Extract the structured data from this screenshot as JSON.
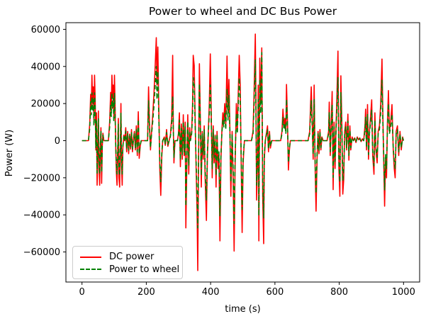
{
  "figure": {
    "title": "Power to wheel and DC Bus Power",
    "xlabel": "time (s)",
    "ylabel": "Power (W)",
    "background_color": "#ffffff",
    "frame_color": "#000000"
  },
  "legend": {
    "items": [
      {
        "label": "DC power",
        "color": "#ff0000",
        "style": "solid"
      },
      {
        "label": "Power to wheel",
        "color": "#008000",
        "style": "dashed"
      }
    ]
  },
  "chart_data": {
    "type": "line",
    "title": "Power to wheel and DC Bus Power",
    "xlabel": "time (s)",
    "ylabel": "Power (W)",
    "xlim": [
      -50,
      1050
    ],
    "ylim": [
      -76200,
      63600
    ],
    "xticks": [
      0,
      200,
      400,
      600,
      800,
      1000
    ],
    "yticks": [
      60000,
      40000,
      20000,
      0,
      -20000,
      -40000,
      -60000
    ],
    "ytick_labels": [
      "60000",
      "40000",
      "20000",
      "0",
      "−20000",
      "−40000",
      "−60000"
    ],
    "grid": false,
    "legend_position": "lower left",
    "series": [
      {
        "name": "DC power",
        "color": "#ff0000",
        "style": "solid",
        "linewidth": 1.6
      },
      {
        "name": "Power to wheel",
        "color": "#008000",
        "style": "dashed",
        "linewidth": 1.6
      }
    ],
    "points_format": [
      "time_s",
      "dc_power_W",
      "wheel_power_W"
    ],
    "points": [
      [
        0,
        0,
        0
      ],
      [
        10,
        0,
        0
      ],
      [
        20,
        0,
        0
      ],
      [
        24,
        9000,
        6700
      ],
      [
        27,
        25000,
        21000
      ],
      [
        29,
        17000,
        14000
      ],
      [
        31,
        35300,
        25800
      ],
      [
        33,
        20000,
        16000
      ],
      [
        35,
        29000,
        23000
      ],
      [
        37,
        11000,
        8100
      ],
      [
        39,
        35300,
        25800
      ],
      [
        41,
        22000,
        17000
      ],
      [
        43,
        -5000,
        -3800
      ],
      [
        45,
        15000,
        11100
      ],
      [
        47,
        -24000,
        -17500
      ],
      [
        49,
        -9000,
        -6800
      ],
      [
        51,
        16000,
        11800
      ],
      [
        53,
        -15000,
        -11200
      ],
      [
        55,
        -24000,
        -18000
      ],
      [
        57,
        -4000,
        -3000
      ],
      [
        59,
        7000,
        5200
      ],
      [
        61,
        -23000,
        -17200
      ],
      [
        63,
        -3000,
        -2200
      ],
      [
        65,
        4000,
        3000
      ],
      [
        68,
        0,
        0
      ],
      [
        75,
        0,
        0
      ],
      [
        82,
        0,
        0
      ],
      [
        86,
        10000,
        7400
      ],
      [
        89,
        26000,
        19800
      ],
      [
        91,
        17000,
        13000
      ],
      [
        93,
        35300,
        25800
      ],
      [
        95,
        23000,
        17500
      ],
      [
        97,
        30000,
        22800
      ],
      [
        99,
        13000,
        9900
      ],
      [
        101,
        35300,
        25800
      ],
      [
        103,
        18000,
        13700
      ],
      [
        105,
        -4000,
        -3000
      ],
      [
        107,
        -17000,
        -12800
      ],
      [
        109,
        -24000,
        -18000
      ],
      [
        111,
        -8000,
        -6000
      ],
      [
        113,
        12000,
        8900
      ],
      [
        115,
        -20000,
        -15000
      ],
      [
        117,
        -25000,
        -18800
      ],
      [
        119,
        -5000,
        -3800
      ],
      [
        121,
        20000,
        14800
      ],
      [
        123,
        -14000,
        -10500
      ],
      [
        125,
        -24000,
        -18000
      ],
      [
        127,
        -4000,
        -3000
      ],
      [
        130,
        3000,
        2200
      ],
      [
        133,
        0,
        0
      ],
      [
        136,
        7000,
        5200
      ],
      [
        139,
        -6000,
        -4500
      ],
      [
        142,
        5000,
        3700
      ],
      [
        145,
        -7000,
        -5200
      ],
      [
        148,
        3500,
        2600
      ],
      [
        151,
        -4500,
        -3400
      ],
      [
        154,
        6000,
        4400
      ],
      [
        157,
        -6000,
        -4500
      ],
      [
        160,
        1000,
        700
      ],
      [
        163,
        5000,
        3700
      ],
      [
        166,
        -5000,
        -3800
      ],
      [
        169,
        8000,
        5900
      ],
      [
        172,
        -8000,
        -6000
      ],
      [
        175,
        15600,
        11500
      ],
      [
        178,
        -9500,
        -7100
      ],
      [
        181,
        -3000,
        -2200
      ],
      [
        184,
        0,
        0
      ],
      [
        190,
        0,
        0
      ],
      [
        198,
        0,
        0
      ],
      [
        204,
        0,
        0
      ],
      [
        207,
        29000,
        21500
      ],
      [
        210,
        9000,
        6700
      ],
      [
        213,
        -5000,
        -3800
      ],
      [
        216,
        4000,
        3000
      ],
      [
        220,
        14000,
        10400
      ],
      [
        224,
        26000,
        19200
      ],
      [
        228,
        42000,
        31100
      ],
      [
        231,
        55500,
        40000
      ],
      [
        233,
        30000,
        22200
      ],
      [
        236,
        50500,
        37400
      ],
      [
        239,
        16000,
        11800
      ],
      [
        242,
        -16000,
        -12000
      ],
      [
        245,
        -29500,
        -22100
      ],
      [
        248,
        -9000,
        -6800
      ],
      [
        251,
        0,
        0
      ],
      [
        256,
        2000,
        1500
      ],
      [
        259,
        -2500,
        -1900
      ],
      [
        263,
        6000,
        4400
      ],
      [
        267,
        -3000,
        -2200
      ],
      [
        271,
        0,
        0
      ],
      [
        275,
        3000,
        2200
      ],
      [
        279,
        12000,
        8900
      ],
      [
        282,
        46000,
        24000
      ],
      [
        284,
        8000,
        5900
      ],
      [
        286,
        -12000,
        -9000
      ],
      [
        289,
        0,
        0
      ],
      [
        293,
        0,
        0
      ],
      [
        297,
        0,
        0
      ],
      [
        300,
        4000,
        3000
      ],
      [
        303,
        15000,
        11100
      ],
      [
        306,
        -14000,
        -10500
      ],
      [
        309,
        9000,
        6700
      ],
      [
        312,
        -10000,
        -7500
      ],
      [
        315,
        14000,
        10400
      ],
      [
        318,
        -8000,
        -6000
      ],
      [
        321,
        10000,
        7400
      ],
      [
        323,
        -47000,
        -35300
      ],
      [
        326,
        -12000,
        -9000
      ],
      [
        329,
        14000,
        10400
      ],
      [
        332,
        -18000,
        -13500
      ],
      [
        335,
        7000,
        5200
      ],
      [
        337,
        0,
        0
      ],
      [
        341,
        5000,
        3700
      ],
      [
        344,
        20000,
        14800
      ],
      [
        346,
        46000,
        34000
      ],
      [
        349,
        40500,
        30000
      ],
      [
        352,
        10000,
        7400
      ],
      [
        355,
        -15000,
        -11200
      ],
      [
        358,
        -40000,
        -30000
      ],
      [
        360,
        -70000,
        -47000
      ],
      [
        362,
        -20000,
        -15000
      ],
      [
        365,
        41500,
        30700
      ],
      [
        368,
        12000,
        8900
      ],
      [
        371,
        -25000,
        -18800
      ],
      [
        374,
        5000,
        3700
      ],
      [
        377,
        -10000,
        -7500
      ],
      [
        380,
        8000,
        5900
      ],
      [
        383,
        -20000,
        -15000
      ],
      [
        387,
        -43000,
        -32200
      ],
      [
        390,
        -8000,
        -6000
      ],
      [
        393,
        6000,
        4400
      ],
      [
        396,
        20000,
        14800
      ],
      [
        399,
        46800,
        30000
      ],
      [
        402,
        15000,
        11100
      ],
      [
        405,
        -20000,
        -15000
      ],
      [
        408,
        8000,
        5900
      ],
      [
        411,
        -12000,
        -9000
      ],
      [
        414,
        3000,
        2200
      ],
      [
        417,
        -25000,
        -18800
      ],
      [
        420,
        5000,
        3700
      ],
      [
        423,
        -15000,
        -11200
      ],
      [
        426,
        -8000,
        -6000
      ],
      [
        429,
        -54000,
        -40500
      ],
      [
        432,
        -10000,
        -7500
      ],
      [
        435,
        5000,
        3700
      ],
      [
        438,
        15000,
        11100
      ],
      [
        441,
        10000,
        7400
      ],
      [
        444,
        20000,
        14800
      ],
      [
        447,
        8000,
        5900
      ],
      [
        451,
        45600,
        28000
      ],
      [
        454,
        15000,
        11100
      ],
      [
        457,
        33000,
        24400
      ],
      [
        460,
        5000,
        3700
      ],
      [
        463,
        -30000,
        -22500
      ],
      [
        467,
        5000,
        3700
      ],
      [
        470,
        -20000,
        -15000
      ],
      [
        473,
        -59500,
        -44600
      ],
      [
        476,
        -15000,
        -11200
      ],
      [
        480,
        20000,
        14800
      ],
      [
        483,
        5000,
        3700
      ],
      [
        486,
        25000,
        18500
      ],
      [
        489,
        46000,
        34000
      ],
      [
        492,
        30000,
        22200
      ],
      [
        495,
        -10000,
        -7500
      ],
      [
        498,
        -49500,
        -37100
      ],
      [
        501,
        -12000,
        -9000
      ],
      [
        505,
        0,
        0
      ],
      [
        515,
        0,
        0
      ],
      [
        527,
        0,
        0
      ],
      [
        532,
        5000,
        3700
      ],
      [
        535,
        25000,
        18500
      ],
      [
        539,
        57500,
        43500
      ],
      [
        541,
        20000,
        14800
      ],
      [
        543,
        -32000,
        -24000
      ],
      [
        546,
        -10000,
        -7500
      ],
      [
        548,
        30000,
        22200
      ],
      [
        550,
        -54000,
        -40500
      ],
      [
        553,
        44500,
        33000
      ],
      [
        556,
        20000,
        14800
      ],
      [
        559,
        50000,
        47500
      ],
      [
        562,
        -30000,
        -22500
      ],
      [
        565,
        -55500,
        -41600
      ],
      [
        567,
        -10000,
        -7500
      ],
      [
        570,
        0,
        0
      ],
      [
        577,
        8000,
        5900
      ],
      [
        580,
        -6000,
        -4500
      ],
      [
        583,
        5000,
        3700
      ],
      [
        586,
        -4000,
        -3000
      ],
      [
        590,
        0,
        0
      ],
      [
        598,
        0,
        0
      ],
      [
        608,
        0,
        0
      ],
      [
        618,
        0,
        0
      ],
      [
        622,
        5000,
        3700
      ],
      [
        625,
        17000,
        12600
      ],
      [
        628,
        8000,
        5900
      ],
      [
        631,
        12000,
        8900
      ],
      [
        634,
        5000,
        3700
      ],
      [
        636,
        30300,
        22400
      ],
      [
        639,
        10000,
        7400
      ],
      [
        642,
        -15800,
        -11800
      ],
      [
        645,
        -5000,
        -3800
      ],
      [
        648,
        0,
        0
      ],
      [
        655,
        0,
        0
      ],
      [
        665,
        0,
        0
      ],
      [
        675,
        0,
        0
      ],
      [
        685,
        0,
        0
      ],
      [
        695,
        0,
        0
      ],
      [
        703,
        0,
        0
      ],
      [
        708,
        5000,
        3700
      ],
      [
        711,
        20000,
        14800
      ],
      [
        713,
        29000,
        21500
      ],
      [
        716,
        10000,
        7400
      ],
      [
        719,
        -10000,
        -7500
      ],
      [
        722,
        30000,
        22200
      ],
      [
        725,
        -15000,
        -11200
      ],
      [
        728,
        -38000,
        -28500
      ],
      [
        731,
        -10000,
        -7500
      ],
      [
        734,
        5000,
        3700
      ],
      [
        737,
        -7000,
        -5200
      ],
      [
        740,
        6000,
        4400
      ],
      [
        743,
        -5000,
        -3800
      ],
      [
        746,
        2000,
        1500
      ],
      [
        750,
        0,
        0
      ],
      [
        756,
        0,
        0
      ],
      [
        762,
        0,
        0
      ],
      [
        767,
        5000,
        3700
      ],
      [
        769,
        20800,
        15400
      ],
      [
        772,
        -8000,
        -6000
      ],
      [
        775,
        10000,
        7400
      ],
      [
        778,
        26500,
        19600
      ],
      [
        781,
        -26400,
        -19800
      ],
      [
        784,
        10000,
        7400
      ],
      [
        787,
        -15000,
        -11200
      ],
      [
        790,
        8000,
        5900
      ],
      [
        793,
        25000,
        18500
      ],
      [
        796,
        48300,
        34000
      ],
      [
        799,
        -15000,
        -11200
      ],
      [
        802,
        -30000,
        -22500
      ],
      [
        805,
        35000,
        25900
      ],
      [
        808,
        10000,
        7400
      ],
      [
        811,
        -28800,
        -21600
      ],
      [
        814,
        -21000,
        -15700
      ],
      [
        817,
        5000,
        3700
      ],
      [
        820,
        10000,
        7400
      ],
      [
        823,
        -5000,
        -3800
      ],
      [
        827,
        14300,
        10600
      ],
      [
        830,
        -10500,
        -7900
      ],
      [
        833,
        8000,
        5900
      ],
      [
        836,
        -5000,
        -3800
      ],
      [
        840,
        2000,
        1500
      ],
      [
        844,
        0,
        0
      ],
      [
        848,
        1500,
        1100
      ],
      [
        852,
        -1000,
        -700
      ],
      [
        856,
        2000,
        1500
      ],
      [
        860,
        500,
        400
      ],
      [
        864,
        1500,
        1100
      ],
      [
        868,
        -500,
        -400
      ],
      [
        872,
        1000,
        700
      ],
      [
        876,
        0,
        0
      ],
      [
        880,
        8000,
        5900
      ],
      [
        882,
        17000,
        12600
      ],
      [
        885,
        -5000,
        -3800
      ],
      [
        888,
        19500,
        14400
      ],
      [
        891,
        -10000,
        -7500
      ],
      [
        894,
        5000,
        3700
      ],
      [
        897,
        12000,
        8900
      ],
      [
        901,
        22000,
        16300
      ],
      [
        904,
        -8000,
        -6000
      ],
      [
        908,
        -18100,
        -13600
      ],
      [
        911,
        15000,
        11100
      ],
      [
        914,
        -5000,
        -3800
      ],
      [
        918,
        -12000,
        -9000
      ],
      [
        921,
        5000,
        3700
      ],
      [
        925,
        8000,
        5900
      ],
      [
        929,
        20000,
        14800
      ],
      [
        933,
        44000,
        32600
      ],
      [
        936,
        10000,
        7400
      ],
      [
        941,
        -35300,
        -26500
      ],
      [
        944,
        -10000,
        -7500
      ],
      [
        947,
        -20000,
        -15000
      ],
      [
        950,
        10000,
        7400
      ],
      [
        953,
        27000,
        20000
      ],
      [
        956,
        5000,
        3700
      ],
      [
        960,
        10000,
        7400
      ],
      [
        964,
        19500,
        14400
      ],
      [
        968,
        -5000,
        -3800
      ],
      [
        971,
        -15000,
        -11200
      ],
      [
        974,
        -20000,
        -15000
      ],
      [
        977,
        5000,
        3700
      ],
      [
        981,
        8000,
        5900
      ],
      [
        985,
        -8000,
        -6000
      ],
      [
        989,
        5000,
        3700
      ],
      [
        993,
        -5000,
        -3800
      ],
      [
        997,
        2000,
        1500
      ],
      [
        1000,
        0,
        0
      ]
    ]
  }
}
